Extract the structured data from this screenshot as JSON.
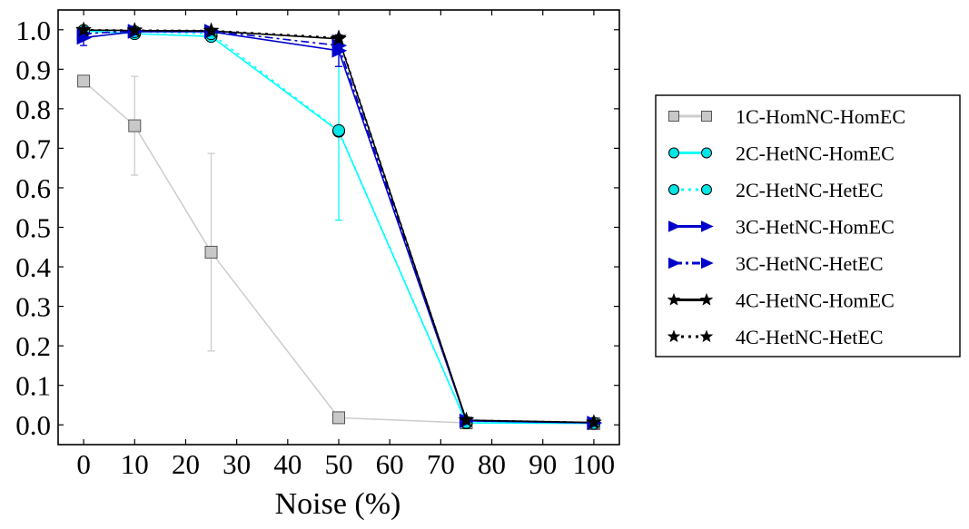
{
  "chart_data": {
    "type": "line",
    "title": "",
    "xlabel": "Noise (%)",
    "ylabel": "",
    "xlim": [
      -5,
      105
    ],
    "ylim": [
      -0.05,
      1.05
    ],
    "x": [
      0,
      10,
      25,
      50,
      75,
      100
    ],
    "x_ticks": [
      "0",
      "10",
      "20",
      "30",
      "40",
      "50",
      "60",
      "70",
      "80",
      "90",
      "100"
    ],
    "y_ticks": [
      "0.0",
      "0.1",
      "0.2",
      "0.3",
      "0.4",
      "0.5",
      "0.6",
      "0.7",
      "0.8",
      "0.9",
      "1.0"
    ],
    "legend_position": "right, outside plot",
    "series": [
      {
        "name": "1C-HomNC-HomEC",
        "values": [
          0.87,
          0.757,
          0.437,
          0.018,
          0.005,
          0.003
        ],
        "error": [
          0.0,
          0.125,
          0.25,
          0.0,
          0.0,
          0.0
        ],
        "color": "#cccccc",
        "marker": "square",
        "linestyle": "solid"
      },
      {
        "name": "2C-HetNC-HomEC",
        "values": [
          0.997,
          0.99,
          0.983,
          0.743,
          0.005,
          0.004
        ],
        "error": [
          0.0,
          0.0,
          0.0,
          0.225,
          0.0,
          0.0
        ],
        "color": "#00ffff",
        "marker": "circle",
        "linestyle": "solid"
      },
      {
        "name": "2C-HetNC-HetEC",
        "values": [
          0.998,
          0.995,
          0.99,
          0.745,
          0.006,
          0.004
        ],
        "error": [
          0.0,
          0.0,
          0.0,
          0.0,
          0.0,
          0.0
        ],
        "color": "#00ffff",
        "marker": "circle",
        "linestyle": "dotted"
      },
      {
        "name": "3C-HetNC-HomEC",
        "values": [
          0.98,
          0.995,
          0.995,
          0.947,
          0.01,
          0.005
        ],
        "error": [
          0.02,
          0.0,
          0.0,
          0.04,
          0.0,
          0.0
        ],
        "color": "#0000cc",
        "marker": "triangle-right",
        "linestyle": "solid"
      },
      {
        "name": "3C-HetNC-HetEC",
        "values": [
          0.99,
          0.997,
          0.997,
          0.96,
          0.011,
          0.005
        ],
        "error": [
          0.0,
          0.0,
          0.0,
          0.0,
          0.0,
          0.0
        ],
        "color": "#0000cc",
        "marker": "triangle-right",
        "linestyle": "dashdot"
      },
      {
        "name": "4C-HetNC-HomEC",
        "values": [
          0.999,
          0.998,
          0.997,
          0.977,
          0.012,
          0.006
        ],
        "error": [
          0.0,
          0.0,
          0.0,
          0.0,
          0.0,
          0.0
        ],
        "color": "#000000",
        "marker": "star",
        "linestyle": "solid"
      },
      {
        "name": "4C-HetNC-HetEC",
        "values": [
          1.0,
          0.999,
          0.998,
          0.98,
          0.012,
          0.006
        ],
        "error": [
          0.0,
          0.0,
          0.0,
          0.0,
          0.0,
          0.0
        ],
        "color": "#000000",
        "marker": "star",
        "linestyle": "dotted"
      }
    ]
  }
}
